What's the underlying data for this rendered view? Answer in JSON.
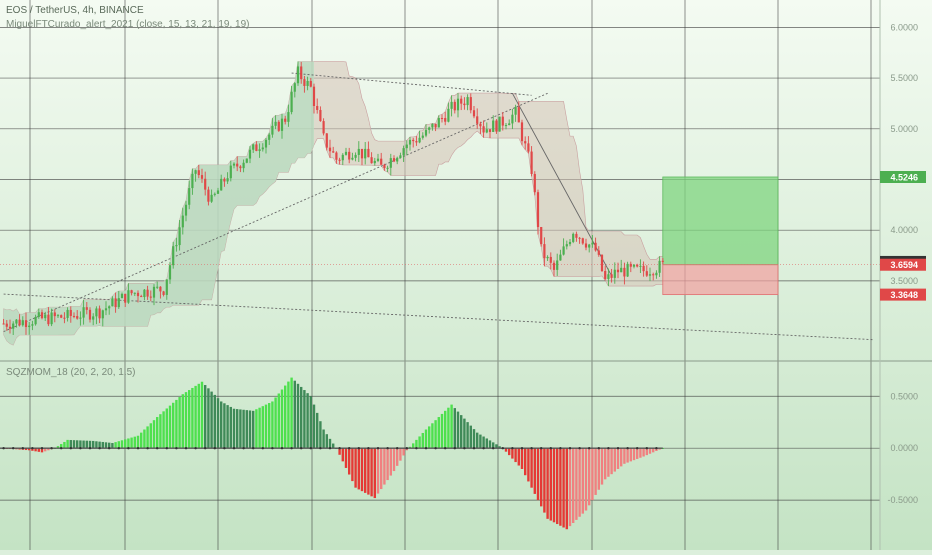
{
  "header": {
    "symbol_line": "EOS / TetherUS, 4h, BINANCE",
    "indicator_line": "MiguelFTCurado_alert_2021 (close, 15, 13, 21, 19, 19)"
  },
  "colors": {
    "bg_top": "#f4fbf2",
    "bg_bottom": "#c4e3c4",
    "up_candle": "#4caf50",
    "down_candle": "#e04848",
    "cloud_up": "#b7dcc0",
    "cloud_down": "#d6c3b6",
    "target_zone": "#7fd47f",
    "stop_zone": "#f2a0a0",
    "mom_bright_green": "#4ee04e",
    "mom_dark_green": "#3f8a58",
    "mom_red": "#e53935",
    "mom_zero_line": "#555555"
  },
  "chart_data": [
    {
      "type": "candlestick",
      "title": "EOS / TetherUS, 4h, BINANCE",
      "ylim": [
        2.72,
        6.27
      ],
      "y_axis_ticks": [
        "6.0000",
        "5.5000",
        "5.0000",
        "4.5000",
        "4.0000",
        "3.5000"
      ],
      "price_tags": [
        {
          "label": "4.5246",
          "value": 4.5246,
          "color": "#4caf50"
        },
        {
          "label": "3.6870",
          "value": 3.687,
          "color": "#333333"
        },
        {
          "label": "3.6594",
          "value": 3.6594,
          "color": "#e04848"
        },
        {
          "label": "3.3648",
          "value": 3.3648,
          "color": "#e04848"
        }
      ],
      "close_path": [
        [
          0,
          3.08
        ],
        [
          10,
          3.12
        ],
        [
          20,
          3.15
        ],
        [
          30,
          3.2
        ],
        [
          40,
          3.38
        ],
        [
          45,
          3.4
        ],
        [
          50,
          3.42
        ],
        [
          56,
          4.15
        ],
        [
          60,
          4.6
        ],
        [
          65,
          4.28
        ],
        [
          70,
          4.55
        ],
        [
          80,
          4.85
        ],
        [
          88,
          5.1
        ],
        [
          92,
          5.55
        ],
        [
          96,
          5.4
        ],
        [
          100,
          4.9
        ],
        [
          104,
          4.7
        ],
        [
          110,
          4.8
        ],
        [
          118,
          4.62
        ],
        [
          126,
          4.85
        ],
        [
          132,
          4.95
        ],
        [
          140,
          5.2
        ],
        [
          145,
          5.3
        ],
        [
          150,
          5.0
        ],
        [
          155,
          5.05
        ],
        [
          160,
          5.15
        ],
        [
          165,
          4.6
        ],
        [
          168,
          3.8
        ],
        [
          172,
          3.6
        ],
        [
          178,
          4.0
        ],
        [
          185,
          3.8
        ],
        [
          188,
          3.5
        ],
        [
          192,
          3.6
        ],
        [
          200,
          3.6
        ],
        [
          206,
          3.65
        ]
      ],
      "trend_lines": [
        {
          "from": [
            0,
            3.0
          ],
          "to": [
            170,
            5.35
          ]
        },
        {
          "from": [
            90,
            5.55
          ],
          "to": [
            165,
            5.33
          ]
        },
        {
          "from": [
            159,
            5.35
          ],
          "to": [
            190,
            3.55
          ]
        },
        {
          "from": [
            0,
            3.37
          ],
          "to": [
            272,
            2.92
          ]
        }
      ],
      "position_box": {
        "start_index": 206,
        "end_index": 242,
        "entry": 3.6594,
        "target": 4.5246,
        "stop": 3.3648
      }
    },
    {
      "type": "bar",
      "title": "SQZMOM_18 (20, 2, 20, 1.5)",
      "ylim": [
        -0.98,
        0.83
      ],
      "y_axis_ticks": [
        "0.5000",
        "0.0000",
        "-0.5000"
      ],
      "momentum_path": [
        [
          0,
          0.0
        ],
        [
          8,
          -0.02
        ],
        [
          12,
          -0.04
        ],
        [
          16,
          0.0
        ],
        [
          20,
          0.08
        ],
        [
          28,
          0.07
        ],
        [
          34,
          0.05
        ],
        [
          42,
          0.12
        ],
        [
          48,
          0.3
        ],
        [
          56,
          0.52
        ],
        [
          62,
          0.64
        ],
        [
          68,
          0.45
        ],
        [
          72,
          0.38
        ],
        [
          78,
          0.36
        ],
        [
          84,
          0.45
        ],
        [
          90,
          0.68
        ],
        [
          96,
          0.5
        ],
        [
          100,
          0.18
        ],
        [
          104,
          0.0
        ],
        [
          110,
          -0.38
        ],
        [
          116,
          -0.48
        ],
        [
          122,
          -0.22
        ],
        [
          126,
          -0.02
        ],
        [
          132,
          0.18
        ],
        [
          140,
          0.42
        ],
        [
          148,
          0.15
        ],
        [
          156,
          0.0
        ],
        [
          162,
          -0.2
        ],
        [
          170,
          -0.68
        ],
        [
          176,
          -0.78
        ],
        [
          182,
          -0.6
        ],
        [
          188,
          -0.3
        ],
        [
          194,
          -0.15
        ],
        [
          200,
          -0.08
        ],
        [
          206,
          0.0
        ]
      ]
    }
  ]
}
